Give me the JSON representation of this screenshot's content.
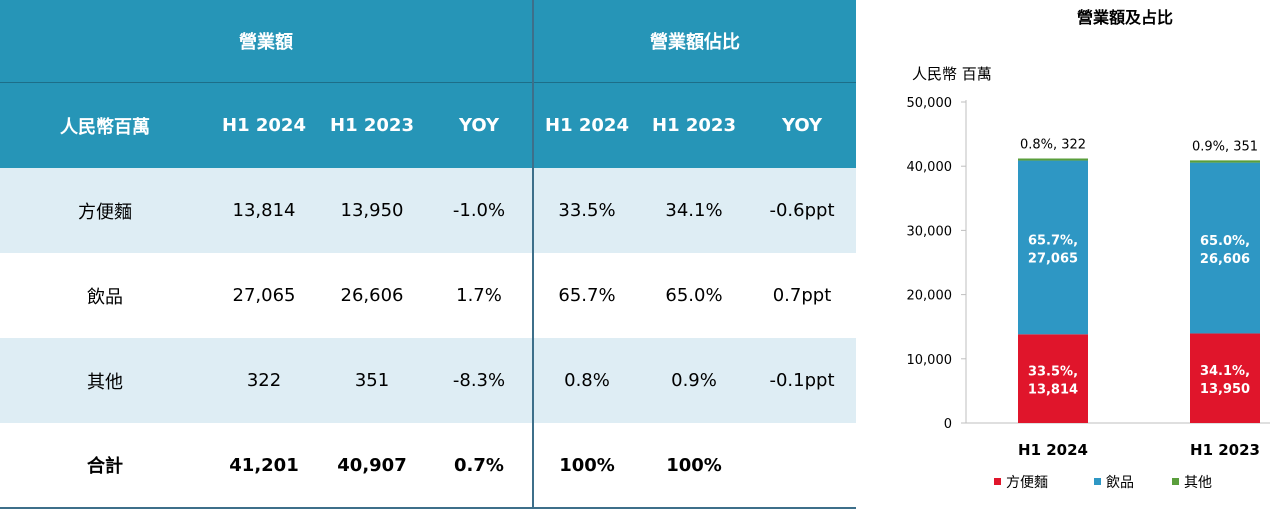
{
  "table": {
    "group_headers": {
      "revenue": "營業額",
      "share": "營業額佔比"
    },
    "columns": [
      "人民幣百萬",
      "H1 2024",
      "H1 2023",
      "YOY",
      "H1 2024",
      "H1 2023",
      "YOY"
    ],
    "rows": [
      [
        "方便麵",
        "13,814",
        "13,950",
        "-1.0%",
        "33.5%",
        "34.1%",
        "-0.6ppt"
      ],
      [
        "飲品",
        "27,065",
        "26,606",
        "1.7%",
        "65.7%",
        "65.0%",
        "0.7ppt"
      ],
      [
        "其他",
        "322",
        "351",
        "-8.3%",
        "0.8%",
        "0.9%",
        "-0.1ppt"
      ],
      [
        "合計",
        "41,201",
        "40,907",
        "0.7%",
        "100%",
        "100%",
        ""
      ]
    ]
  },
  "colors": {
    "header_bg": "#2695b7",
    "row_alt_bg": "#deedf4",
    "noodles": "#e0152b",
    "drinks": "#2e97c4",
    "others": "#5a9e3c"
  },
  "chart_data": {
    "type": "bar",
    "stacked": true,
    "title": "營業額及占比",
    "ylabel": "人民幣 百萬",
    "categories": [
      "H1 2024",
      "H1 2023"
    ],
    "ylim": [
      0,
      50000
    ],
    "yticks": [
      0,
      10000,
      20000,
      30000,
      40000,
      50000
    ],
    "ytick_labels": [
      "0",
      "10,000",
      "20,000",
      "30,000",
      "40,000",
      "50,000"
    ],
    "series": [
      {
        "name": "方便麵",
        "values": [
          13814,
          13950
        ],
        "labels": [
          [
            "33.5%,",
            "13,814"
          ],
          [
            "34.1%,",
            "13,950"
          ]
        ]
      },
      {
        "name": "飲品",
        "values": [
          27065,
          26606
        ],
        "labels": [
          [
            "65.7%,",
            "27,065"
          ],
          [
            "65.0%,",
            "26,606"
          ]
        ]
      },
      {
        "name": "其他",
        "values": [
          322,
          351
        ],
        "labels": [
          "0.8%, 322",
          "0.9%, 351"
        ]
      }
    ],
    "legend_position": "bottom"
  }
}
